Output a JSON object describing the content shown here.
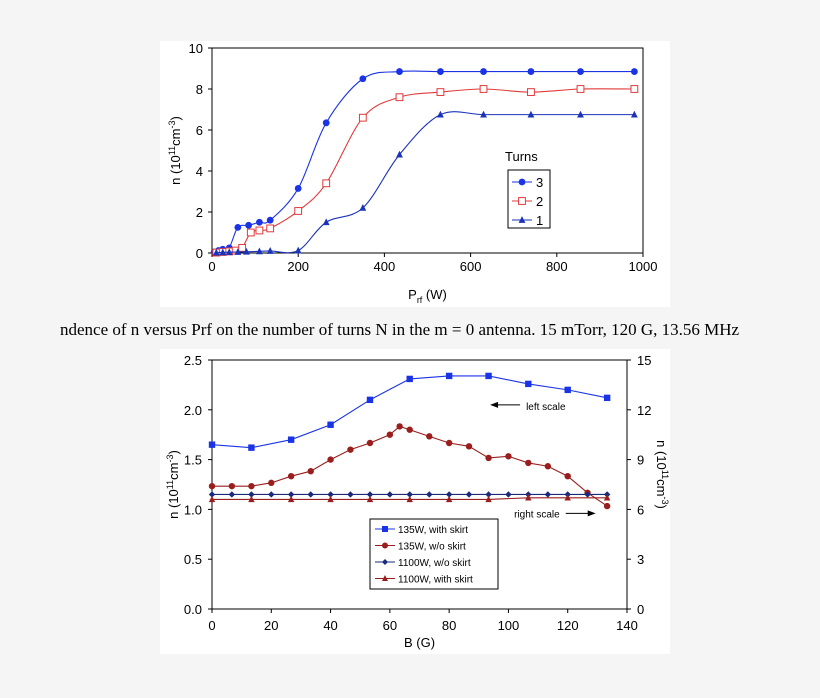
{
  "caption": "ndence of n versus Prf on the number of turns N in the m = 0 antenna. 15 mTorr, 120 G, 13.56 MHz",
  "chart_data": [
    {
      "type": "line",
      "xlabel": "P",
      "xlabel_sub": "rf",
      "xlabel_unit": " (W)",
      "ylabel": "n (10",
      "ylabel_sup1": "11",
      "ylabel_mid": "cm",
      "ylabel_sup2": "-3",
      "ylabel_end": ")",
      "xlim": [
        0,
        1000
      ],
      "ylim": [
        0,
        10
      ],
      "xticks": [
        0,
        200,
        400,
        600,
        800,
        1000
      ],
      "yticks": [
        0,
        2,
        4,
        6,
        8,
        10
      ],
      "grid": false,
      "legend_title": "Turns",
      "legend_position": "right",
      "series": [
        {
          "name": "3",
          "color": "#1a33e6",
          "marker": "circle",
          "x": [
            5,
            15,
            25,
            40,
            60,
            85,
            110,
            135,
            200,
            265,
            350,
            435,
            530,
            630,
            740,
            855,
            980
          ],
          "y": [
            0.05,
            0.12,
            0.18,
            0.25,
            1.25,
            1.35,
            1.5,
            1.6,
            3.15,
            6.35,
            8.5,
            8.85,
            8.85,
            8.85,
            8.85,
            8.85,
            8.85
          ]
        },
        {
          "name": "2",
          "color": "#e23a3a",
          "marker": "square-open",
          "x": [
            10,
            25,
            40,
            55,
            70,
            90,
            110,
            135,
            200,
            265,
            350,
            435,
            530,
            630,
            740,
            855,
            980
          ],
          "y": [
            0.02,
            0.05,
            0.08,
            0.12,
            0.25,
            1.0,
            1.1,
            1.2,
            2.05,
            3.4,
            6.6,
            7.6,
            7.85,
            8.0,
            7.85,
            8.0,
            8.0
          ]
        },
        {
          "name": "1",
          "color": "#1a33b8",
          "marker": "triangle",
          "x": [
            10,
            25,
            40,
            60,
            80,
            110,
            135,
            200,
            265,
            350,
            435,
            530,
            630,
            740,
            855,
            980
          ],
          "y": [
            0.02,
            0.03,
            0.04,
            0.05,
            0.06,
            0.08,
            0.1,
            0.12,
            1.5,
            2.2,
            4.8,
            6.75,
            6.75,
            6.75,
            6.75,
            6.75
          ]
        }
      ]
    },
    {
      "type": "line",
      "xlabel": "B (G)",
      "ylabel": "n (10",
      "ylabel_sup1": "11",
      "ylabel_mid": "cm",
      "ylabel_sup2": "-3",
      "ylabel_end": ")",
      "y2label": "n (10",
      "y2label_sup1": "11",
      "y2label_mid": "cm",
      "y2label_sup2": "-3",
      "y2label_end": ")",
      "xlim": [
        0,
        140
      ],
      "ylim": [
        0,
        2.5
      ],
      "y2lim": [
        0,
        15
      ],
      "xticks": [
        0,
        20,
        40,
        60,
        80,
        100,
        120,
        140
      ],
      "yticks": [
        "0.0",
        "0.5",
        "1.0",
        "1.5",
        "2.0",
        "2.5"
      ],
      "y2ticks": [
        0,
        3,
        6,
        9,
        12,
        15
      ],
      "grid": false,
      "legend_position": "bottom-center",
      "annotations": [
        {
          "text": "left scale",
          "arrow": "left",
          "x": 110,
          "y": 2.05
        },
        {
          "text": "right scale",
          "arrow": "right",
          "x": 120,
          "y": 0.96
        }
      ],
      "series": [
        {
          "name": "135W, with skirt",
          "axis": "left",
          "color": "#1a33e6",
          "marker": "square",
          "x": [
            0,
            13.3,
            26.7,
            40,
            53.3,
            66.7,
            80,
            93.3,
            106.7,
            120,
            133.3
          ],
          "y": [
            1.65,
            1.62,
            1.7,
            1.85,
            2.1,
            2.31,
            2.34,
            2.34,
            2.26,
            2.2,
            2.12
          ]
        },
        {
          "name": "135W, w/o skirt",
          "axis": "right",
          "color": "#9a1e1e",
          "marker": "circle",
          "x": [
            0,
            6.7,
            13.3,
            20,
            26.7,
            33.3,
            40,
            46.7,
            53.3,
            60,
            63.3,
            66.7,
            73.3,
            80,
            86.7,
            93.3,
            100,
            106.7,
            113.3,
            120,
            126.7,
            133.3
          ],
          "y": [
            7.4,
            7.4,
            7.4,
            7.6,
            8.0,
            8.3,
            9.0,
            9.6,
            10.0,
            10.5,
            11.0,
            10.8,
            10.4,
            10.0,
            9.8,
            9.1,
            9.2,
            8.8,
            8.6,
            8.0,
            7.0,
            6.2
          ]
        },
        {
          "name": "1100W, w/o skirt",
          "axis": "right",
          "color": "#1a2a7a",
          "marker": "diamond",
          "x": [
            0,
            6.7,
            13.3,
            20,
            26.7,
            33.3,
            40,
            46.7,
            53.3,
            60,
            66.7,
            73.3,
            80,
            86.7,
            93.3,
            100,
            106.7,
            113.3,
            120,
            126.7,
            133.3
          ],
          "y": [
            6.9,
            6.9,
            6.9,
            6.9,
            6.9,
            6.9,
            6.9,
            6.9,
            6.9,
            6.9,
            6.9,
            6.9,
            6.9,
            6.9,
            6.9,
            6.9,
            6.9,
            6.9,
            6.9,
            6.9,
            6.9
          ]
        },
        {
          "name": "1100W, with skirt",
          "axis": "right",
          "color": "#9a1e1e",
          "marker": "triangle",
          "x": [
            0,
            13.3,
            26.7,
            40,
            53.3,
            66.7,
            80,
            93.3,
            106.7,
            120,
            133.3
          ],
          "y": [
            6.6,
            6.6,
            6.6,
            6.6,
            6.6,
            6.6,
            6.6,
            6.6,
            6.7,
            6.7,
            6.7
          ]
        }
      ]
    }
  ]
}
